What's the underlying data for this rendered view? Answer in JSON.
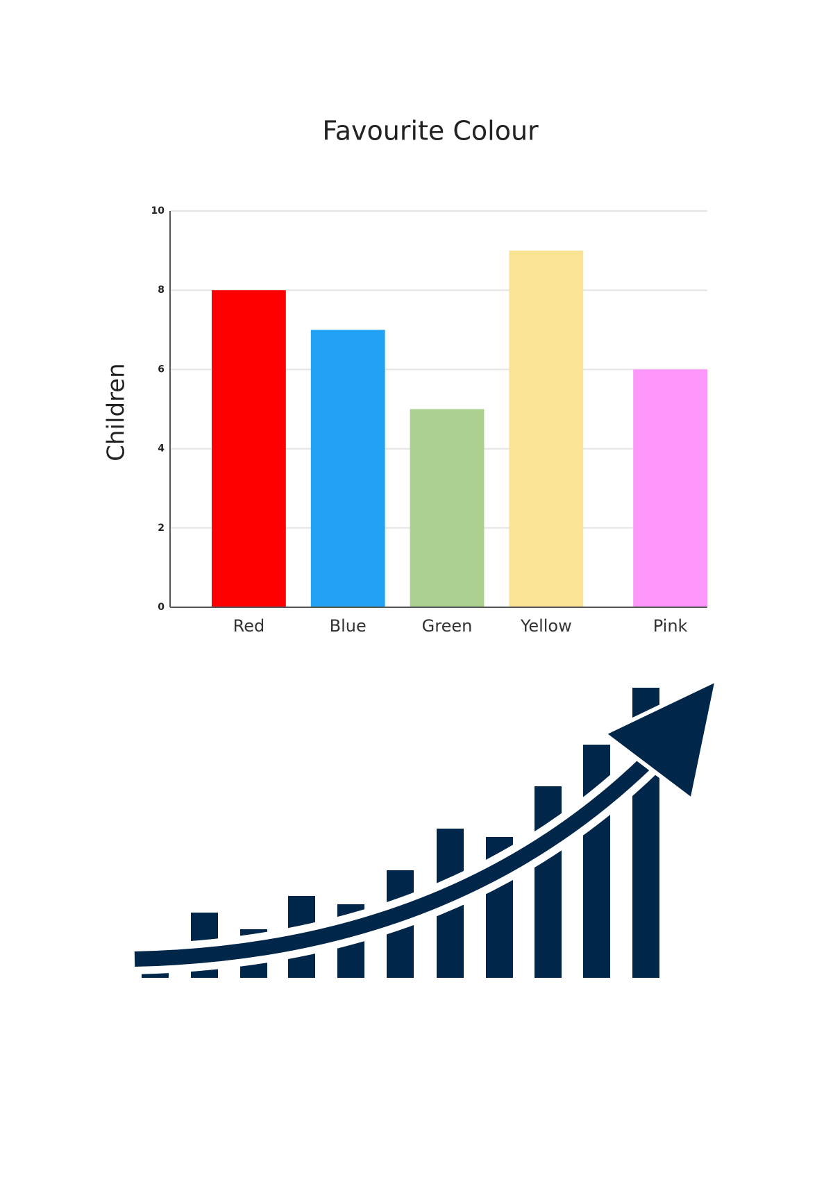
{
  "chart_data": {
    "type": "bar",
    "title": "Favourite Colour",
    "y_label": "Children",
    "categories": [
      "Red",
      "Blue",
      "Green",
      "Yellow",
      "Pink"
    ],
    "values": [
      8,
      7,
      5,
      9,
      6
    ],
    "colors": [
      "#ff0000",
      "#22a2f4",
      "#abd08f",
      "#fbe396",
      "#fd96fb"
    ],
    "ylim": [
      0,
      10
    ],
    "yticks": [
      0,
      2,
      4,
      6,
      8,
      10
    ],
    "grid": true
  }
}
